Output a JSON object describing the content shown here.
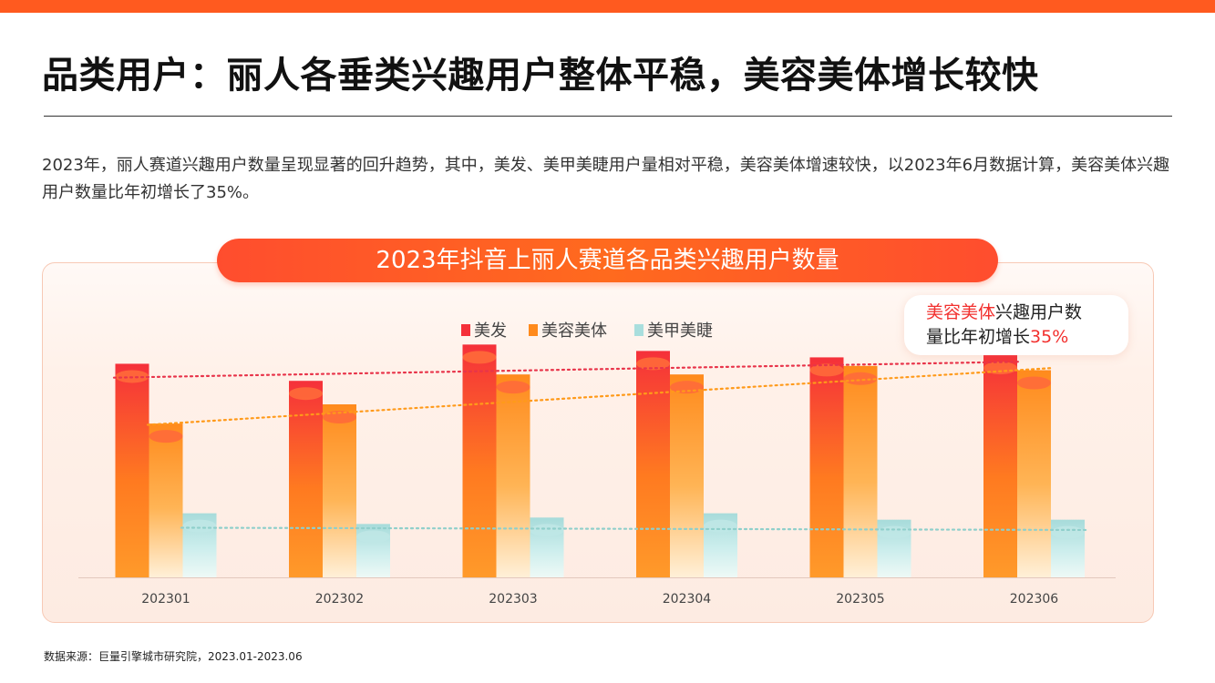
{
  "header": {
    "title": "品类用户：丽人各垂类兴趣用户整体平稳，美容美体增长较快",
    "intro": "2023年，丽人赛道兴趣用户数量呈现显著的回升趋势，其中，美发、美甲美睫用户量相对平稳，美容美体增速较快，以2023年6月数据计算，美容美体兴趣用户数量比年初增长了35%。"
  },
  "colors": {
    "accent": "#ff5a1f",
    "series_meifa": "#f5303a",
    "series_meirong": "#ff8a1c",
    "series_meijia": "#a9dedd",
    "highlight_red": "#f2302e"
  },
  "callout": {
    "highlight": "美容美体",
    "text1": "兴趣用户数",
    "text2": "量比年初增长",
    "pct": "35%"
  },
  "chart_data": {
    "type": "bar",
    "title": "2023年抖音上丽人赛道各品类兴趣用户数量",
    "categories": [
      "202301",
      "202302",
      "202303",
      "202304",
      "202305",
      "202306"
    ],
    "series": [
      {
        "name": "美发",
        "values": [
          100,
          92,
          109,
          106,
          103,
          104
        ],
        "trend": "dotted-red"
      },
      {
        "name": "美容美体",
        "values": [
          72,
          81,
          95,
          95,
          99,
          97
        ],
        "trend": "dotted-orange"
      },
      {
        "name": "美甲美睫",
        "values": [
          30,
          25,
          28,
          30,
          27,
          27
        ],
        "trend": "dotted-teal"
      }
    ],
    "ylim": [
      0,
      110
    ],
    "xlabel": "",
    "ylabel": "",
    "legend": "top-center",
    "grid": false
  },
  "footer": {
    "source": "数据来源：巨量引擎城市研究院，2023.01-2023.06"
  }
}
